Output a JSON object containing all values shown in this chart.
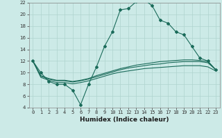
{
  "title": "",
  "xlabel": "Humidex (Indice chaleur)",
  "ylabel": "",
  "bg_color": "#cceae7",
  "grid_color": "#afd4ce",
  "line_color": "#1a6b5a",
  "xlim": [
    -0.5,
    23.5
  ],
  "ylim": [
    4,
    22
  ],
  "xticks": [
    0,
    1,
    2,
    3,
    4,
    5,
    6,
    7,
    8,
    9,
    10,
    11,
    12,
    13,
    14,
    15,
    16,
    17,
    18,
    19,
    20,
    21,
    22,
    23
  ],
  "yticks": [
    4,
    6,
    8,
    10,
    12,
    14,
    16,
    18,
    20,
    22
  ],
  "series": [
    [
      12,
      10,
      8.5,
      8,
      8,
      7,
      4.5,
      8,
      11,
      14.5,
      17,
      20.8,
      21,
      22.2,
      22.5,
      21.5,
      19,
      18.5,
      17,
      16.5,
      14.5,
      12.5,
      12,
      10.5
    ],
    [
      12,
      9.2,
      8.7,
      8.3,
      8.3,
      8.1,
      8.3,
      8.6,
      9.0,
      9.4,
      9.8,
      10.1,
      10.3,
      10.5,
      10.7,
      10.8,
      10.9,
      11.0,
      11.1,
      11.2,
      11.2,
      11.2,
      11.0,
      10.3
    ],
    [
      12,
      9.4,
      8.9,
      8.6,
      8.6,
      8.4,
      8.6,
      8.9,
      9.3,
      9.7,
      10.1,
      10.5,
      10.8,
      11.0,
      11.2,
      11.4,
      11.5,
      11.7,
      11.8,
      11.9,
      11.9,
      11.9,
      11.7,
      10.5
    ],
    [
      12,
      9.5,
      9.0,
      8.7,
      8.7,
      8.5,
      8.7,
      9.0,
      9.5,
      9.9,
      10.3,
      10.7,
      11.0,
      11.3,
      11.5,
      11.7,
      11.9,
      12.0,
      12.1,
      12.2,
      12.2,
      12.1,
      11.9,
      10.5
    ]
  ],
  "marker": "D",
  "markersize": 2.0,
  "linewidth": 0.8,
  "tick_fontsize": 5.0,
  "xlabel_fontsize": 6.5
}
